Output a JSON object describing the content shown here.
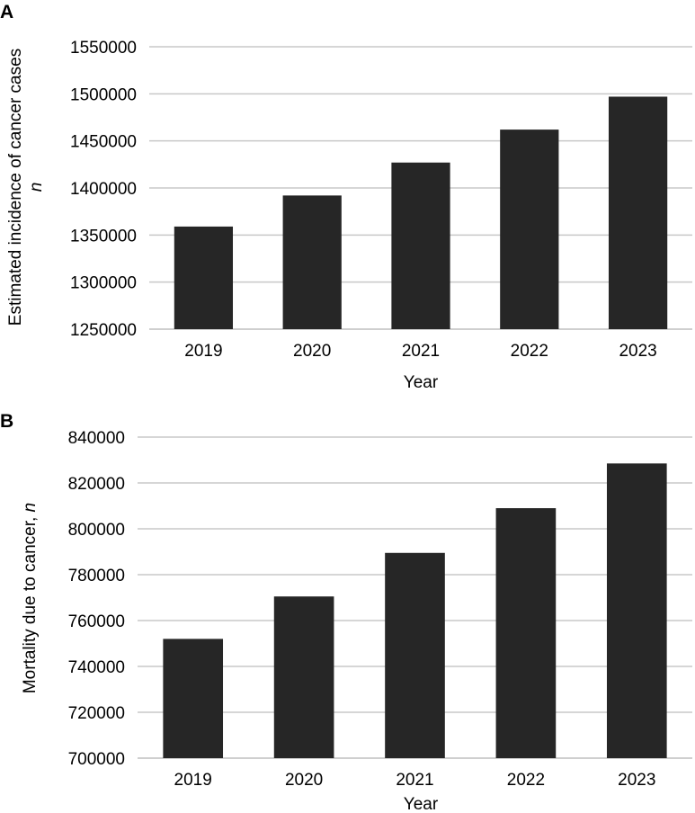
{
  "chart_data": [
    {
      "panel": "A",
      "type": "bar",
      "categories": [
        "2019",
        "2020",
        "2021",
        "2022",
        "2023"
      ],
      "values": [
        1359000,
        1392000,
        1427000,
        1462000,
        1497000
      ],
      "xlabel": "Year",
      "ylabel_main": "Estimated incidence of cancer cases",
      "ylabel_unit": "n",
      "ylim": [
        1250000,
        1550000
      ],
      "yticks": [
        "1250000",
        "1300000",
        "1350000",
        "1400000",
        "1450000",
        "1500000",
        "1550000"
      ],
      "grid": true,
      "bar_color": "#262626"
    },
    {
      "panel": "B",
      "type": "bar",
      "categories": [
        "2019",
        "2020",
        "2021",
        "2022",
        "2023"
      ],
      "values": [
        752000,
        770500,
        789500,
        809000,
        828500
      ],
      "xlabel": "Year",
      "ylabel_main": "Mortality due to cancer, ",
      "ylabel_unit": "n",
      "ylim": [
        700000,
        840000
      ],
      "yticks": [
        "700000",
        "720000",
        "740000",
        "760000",
        "780000",
        "800000",
        "820000",
        "840000"
      ],
      "grid": true,
      "bar_color": "#262626"
    }
  ]
}
